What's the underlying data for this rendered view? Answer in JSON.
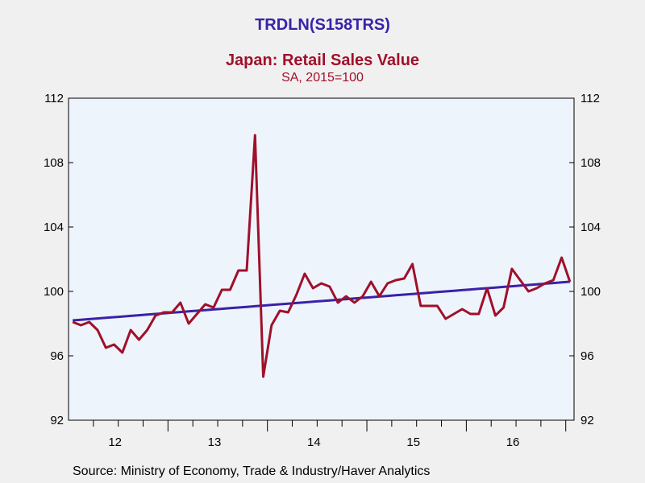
{
  "header": {
    "code": "TRDLN(S158TRS)",
    "title": "Japan: Retail Sales Value",
    "subtitle": "SA, 2015=100"
  },
  "footer": {
    "source": "Source:  Ministry of Economy, Trade & Industry/Haver Analytics"
  },
  "colors": {
    "code": "#3a22a8",
    "title": "#a0102a",
    "series_actual": "#a0102a",
    "series_trend": "#3a22a8",
    "plot_bg": "#eef4fb",
    "page_bg": "#f0f0f0"
  },
  "chart_data": {
    "type": "line",
    "title": "Japan: Retail Sales Value",
    "subtitle": "SA, 2015=100",
    "xlabel": "",
    "ylabel": "",
    "x_ticks": [
      "12",
      "13",
      "14",
      "15",
      "16"
    ],
    "x_range_months": [
      "2012-01",
      "2016-12"
    ],
    "ylim": [
      92,
      112
    ],
    "y_ticks": [
      92,
      96,
      100,
      104,
      108,
      112
    ],
    "y_axis_both_sides": true,
    "grid": false,
    "legend": "none",
    "series": [
      {
        "color": "#a0102a",
        "start": "2012-01",
        "values": [
          98.1,
          97.9,
          98.1,
          97.6,
          96.5,
          96.7,
          96.2,
          97.6,
          97.0,
          97.6,
          98.5,
          98.7,
          98.7,
          99.3,
          98.0,
          98.6,
          99.2,
          99.0,
          100.1,
          100.1,
          101.3,
          101.3,
          109.7,
          94.7,
          97.9,
          98.8,
          98.7,
          99.8,
          101.1,
          100.2,
          100.5,
          100.3,
          99.3,
          99.7,
          99.3,
          99.7,
          100.6,
          99.7,
          100.5,
          100.7,
          100.8,
          101.7,
          99.1,
          99.1,
          99.1,
          98.3,
          98.6,
          98.9,
          98.6,
          98.6,
          100.2,
          98.5,
          99.0,
          101.4,
          100.7,
          100.0,
          100.2,
          100.5,
          100.7,
          102.1,
          100.6
        ]
      },
      {
        "color": "#3a22a8",
        "start": "2012-01",
        "values": [
          98.2,
          98.24,
          98.28,
          98.32,
          98.36,
          98.4,
          98.44,
          98.48,
          98.52,
          98.56,
          98.6,
          98.64,
          98.68,
          98.72,
          98.76,
          98.8,
          98.84,
          98.88,
          98.92,
          98.96,
          99.0,
          99.04,
          99.08,
          99.12,
          99.16,
          99.2,
          99.24,
          99.28,
          99.32,
          99.36,
          99.4,
          99.44,
          99.48,
          99.52,
          99.56,
          99.6,
          99.64,
          99.68,
          99.72,
          99.76,
          99.8,
          99.84,
          99.88,
          99.92,
          99.96,
          100.0,
          100.04,
          100.08,
          100.12,
          100.16,
          100.2,
          100.24,
          100.28,
          100.32,
          100.36,
          100.4,
          100.44,
          100.48,
          100.52,
          100.56,
          100.6
        ]
      }
    ]
  }
}
